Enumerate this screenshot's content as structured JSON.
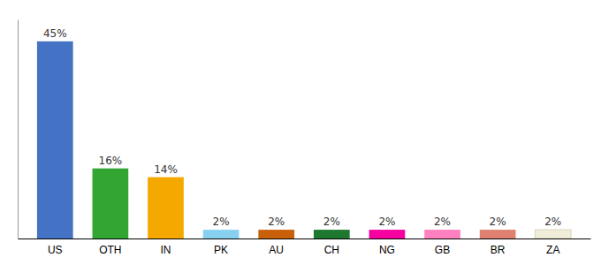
{
  "chart_data": {
    "type": "bar",
    "categories": [
      "US",
      "OTH",
      "IN",
      "PK",
      "AU",
      "CH",
      "NG",
      "GB",
      "BR",
      "ZA"
    ],
    "values": [
      45,
      16,
      14,
      2,
      2,
      2,
      2,
      2,
      2,
      2
    ],
    "value_labels": [
      "45%",
      "16%",
      "14%",
      "2%",
      "2%",
      "2%",
      "2%",
      "2%",
      "2%",
      "2%"
    ],
    "colors": [
      "#4472c4",
      "#33a532",
      "#f5a800",
      "#88d0f0",
      "#c8600a",
      "#1e7830",
      "#f700a0",
      "#ff80c0",
      "#e08070",
      "#f0eed8"
    ],
    "ylim": [
      0,
      50
    ],
    "data_labels": true,
    "tick_labels": "x"
  }
}
